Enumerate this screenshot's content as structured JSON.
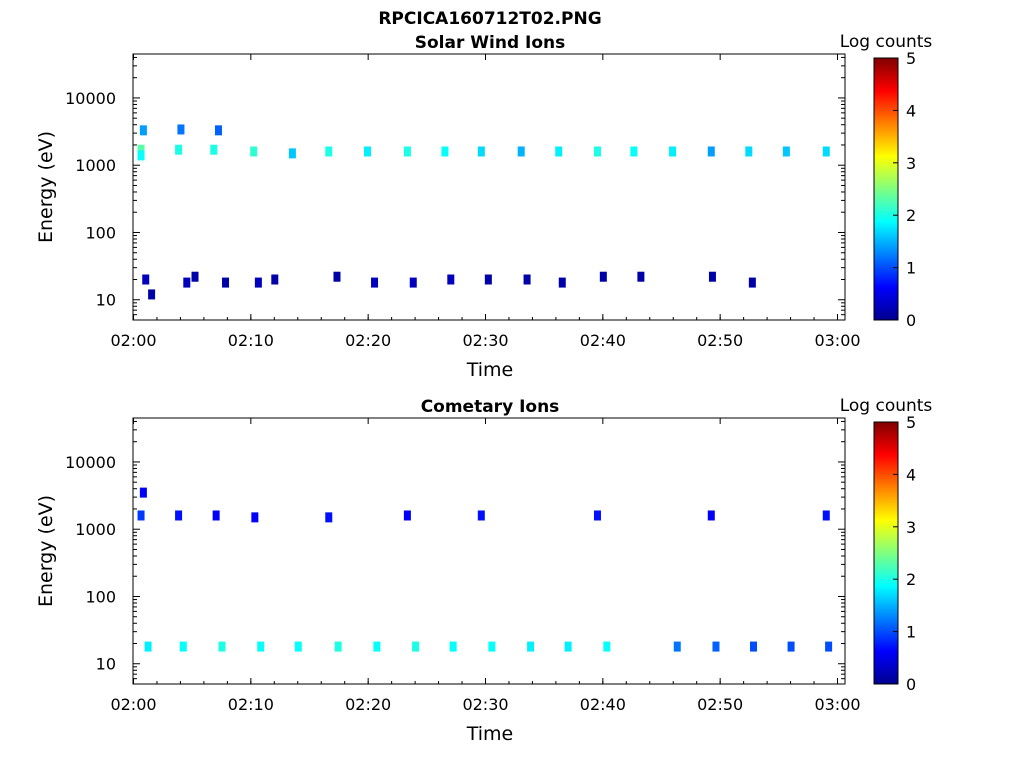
{
  "figure": {
    "title": "RPCICA160712T02.PNG"
  },
  "colorbar": {
    "label": "Log counts",
    "ticks": [
      "5",
      "4",
      "3",
      "2",
      "1",
      "0"
    ],
    "range": [
      0,
      5
    ],
    "colormap": "jet"
  },
  "chart_data": [
    {
      "type": "heatmap",
      "title": "Solar Wind Ions",
      "xlabel": "Time",
      "ylabel": "Energy (eV)",
      "x_ticks": [
        "02:00",
        "02:10",
        "02:20",
        "02:30",
        "02:40",
        "02:50",
        "03:00"
      ],
      "y_ticks": [
        "10000",
        "1000",
        "100",
        "10"
      ],
      "y_scale": "log",
      "xlim_minutes": [
        0,
        60
      ],
      "ylim_ev": [
        5,
        45000
      ],
      "color_scale": "Log counts (0-5)",
      "cells": [
        {
          "t": 0.6,
          "e": 1700,
          "v": 2.3
        },
        {
          "t": 0.6,
          "e": 1400,
          "v": 1.9
        },
        {
          "t": 0.8,
          "e": 3300,
          "v": 1.4
        },
        {
          "t": 3.8,
          "e": 1700,
          "v": 2.0
        },
        {
          "t": 4.0,
          "e": 3400,
          "v": 1.2
        },
        {
          "t": 6.8,
          "e": 1700,
          "v": 2.0
        },
        {
          "t": 7.2,
          "e": 3300,
          "v": 1.1
        },
        {
          "t": 10.2,
          "e": 1600,
          "v": 2.1
        },
        {
          "t": 13.5,
          "e": 1500,
          "v": 1.6
        },
        {
          "t": 16.6,
          "e": 1600,
          "v": 2.0
        },
        {
          "t": 19.9,
          "e": 1600,
          "v": 1.8
        },
        {
          "t": 23.3,
          "e": 1600,
          "v": 2.0
        },
        {
          "t": 26.5,
          "e": 1600,
          "v": 1.9
        },
        {
          "t": 29.6,
          "e": 1600,
          "v": 1.7
        },
        {
          "t": 33.0,
          "e": 1600,
          "v": 1.5
        },
        {
          "t": 36.2,
          "e": 1600,
          "v": 1.8
        },
        {
          "t": 39.5,
          "e": 1600,
          "v": 2.0
        },
        {
          "t": 42.6,
          "e": 1600,
          "v": 1.9
        },
        {
          "t": 45.9,
          "e": 1600,
          "v": 1.8
        },
        {
          "t": 49.2,
          "e": 1600,
          "v": 1.4
        },
        {
          "t": 52.4,
          "e": 1600,
          "v": 1.7
        },
        {
          "t": 55.6,
          "e": 1600,
          "v": 1.6
        },
        {
          "t": 59.0,
          "e": 1600,
          "v": 1.7
        },
        {
          "t": 1.0,
          "e": 20,
          "v": 0.3
        },
        {
          "t": 1.5,
          "e": 12,
          "v": 0.2
        },
        {
          "t": 4.5,
          "e": 18,
          "v": 0.3
        },
        {
          "t": 5.2,
          "e": 22,
          "v": 0.2
        },
        {
          "t": 7.8,
          "e": 18,
          "v": 0.2
        },
        {
          "t": 10.6,
          "e": 18,
          "v": 0.3
        },
        {
          "t": 12.0,
          "e": 20,
          "v": 0.2
        },
        {
          "t": 17.3,
          "e": 22,
          "v": 0.2
        },
        {
          "t": 20.5,
          "e": 18,
          "v": 0.3
        },
        {
          "t": 23.8,
          "e": 18,
          "v": 0.3
        },
        {
          "t": 27.0,
          "e": 20,
          "v": 0.3
        },
        {
          "t": 30.2,
          "e": 20,
          "v": 0.2
        },
        {
          "t": 33.5,
          "e": 20,
          "v": 0.2
        },
        {
          "t": 36.5,
          "e": 18,
          "v": 0.2
        },
        {
          "t": 40.0,
          "e": 22,
          "v": 0.2
        },
        {
          "t": 43.2,
          "e": 22,
          "v": 0.2
        },
        {
          "t": 49.3,
          "e": 22,
          "v": 0.2
        },
        {
          "t": 52.7,
          "e": 18,
          "v": 0.2
        }
      ]
    },
    {
      "type": "heatmap",
      "title": "Cometary Ions",
      "xlabel": "Time",
      "ylabel": "Energy (eV)",
      "x_ticks": [
        "02:00",
        "02:10",
        "02:20",
        "02:30",
        "02:40",
        "02:50",
        "03:00"
      ],
      "y_ticks": [
        "10000",
        "1000",
        "100",
        "10"
      ],
      "y_scale": "log",
      "xlim_minutes": [
        0,
        60
      ],
      "ylim_ev": [
        5,
        45000
      ],
      "color_scale": "Log counts (0-5)",
      "cells": [
        {
          "t": 0.6,
          "e": 1600,
          "v": 0.9
        },
        {
          "t": 0.8,
          "e": 3500,
          "v": 0.6
        },
        {
          "t": 3.8,
          "e": 1600,
          "v": 0.7
        },
        {
          "t": 7.0,
          "e": 1600,
          "v": 0.6
        },
        {
          "t": 10.3,
          "e": 1500,
          "v": 0.6
        },
        {
          "t": 16.6,
          "e": 1500,
          "v": 0.7
        },
        {
          "t": 23.3,
          "e": 1600,
          "v": 0.6
        },
        {
          "t": 29.6,
          "e": 1600,
          "v": 0.7
        },
        {
          "t": 39.5,
          "e": 1600,
          "v": 0.7
        },
        {
          "t": 49.2,
          "e": 1600,
          "v": 0.6
        },
        {
          "t": 59.0,
          "e": 1600,
          "v": 0.7
        },
        {
          "t": 1.2,
          "e": 18,
          "v": 1.8
        },
        {
          "t": 4.2,
          "e": 18,
          "v": 1.9
        },
        {
          "t": 7.5,
          "e": 18,
          "v": 2.0
        },
        {
          "t": 10.8,
          "e": 18,
          "v": 1.9
        },
        {
          "t": 14.0,
          "e": 18,
          "v": 1.9
        },
        {
          "t": 17.4,
          "e": 18,
          "v": 2.0
        },
        {
          "t": 20.7,
          "e": 18,
          "v": 1.9
        },
        {
          "t": 24.0,
          "e": 18,
          "v": 2.0
        },
        {
          "t": 27.2,
          "e": 18,
          "v": 1.9
        },
        {
          "t": 30.5,
          "e": 18,
          "v": 1.9
        },
        {
          "t": 33.8,
          "e": 18,
          "v": 1.8
        },
        {
          "t": 37.0,
          "e": 18,
          "v": 1.8
        },
        {
          "t": 40.3,
          "e": 18,
          "v": 1.9
        },
        {
          "t": 46.3,
          "e": 18,
          "v": 1.2
        },
        {
          "t": 49.6,
          "e": 18,
          "v": 1.1
        },
        {
          "t": 52.8,
          "e": 18,
          "v": 1.0
        },
        {
          "t": 56.0,
          "e": 18,
          "v": 1.0
        },
        {
          "t": 59.2,
          "e": 18,
          "v": 1.0
        }
      ]
    }
  ]
}
